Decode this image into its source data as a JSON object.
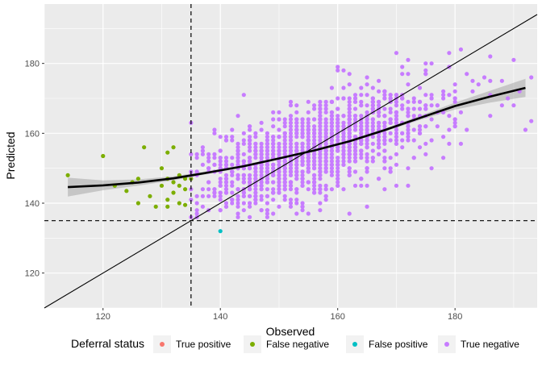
{
  "chart_data": {
    "type": "scatter",
    "title": "",
    "xlabel": "Observed",
    "ylabel": "Predicted",
    "xlim": [
      110,
      194
    ],
    "ylim": [
      110,
      197
    ],
    "x_ticks": [
      120,
      140,
      160,
      180
    ],
    "y_ticks": [
      120,
      140,
      160,
      180
    ],
    "grid": true,
    "threshold_x": 135,
    "threshold_y": 135,
    "identity_line": true,
    "legend": {
      "title": "Deferral status",
      "placement": "bottom",
      "entries": [
        {
          "label": "True positive",
          "color": "#F8766D"
        },
        {
          "label": "False negative",
          "color": "#7CAE00"
        },
        {
          "label": "False positive",
          "color": "#00BFC4"
        },
        {
          "label": "True negative",
          "color": "#C77CFF"
        }
      ]
    },
    "smooth": {
      "x": [
        114,
        120,
        126,
        132,
        138,
        144,
        150,
        156,
        162,
        168,
        174,
        180,
        186,
        192
      ],
      "y": [
        144.6,
        145.1,
        145.9,
        147.1,
        148.8,
        150.6,
        152.8,
        155.1,
        157.7,
        160.9,
        164.4,
        167.8,
        170.5,
        173.0
      ],
      "upper": [
        147.3,
        146.5,
        146.8,
        147.7,
        149.2,
        151.0,
        153.1,
        155.4,
        158.0,
        161.3,
        165.0,
        168.8,
        172.2,
        175.6
      ],
      "lower": [
        141.9,
        143.7,
        145.0,
        146.5,
        148.4,
        150.2,
        152.5,
        154.8,
        157.4,
        160.5,
        163.8,
        166.8,
        168.8,
        170.4
      ]
    },
    "series": [
      {
        "name": "False negative",
        "color": "#7CAE00",
        "points": [
          [
            114,
            148
          ],
          [
            120,
            153.5
          ],
          [
            122,
            145
          ],
          [
            124,
            143.5
          ],
          [
            125,
            146
          ],
          [
            126,
            147
          ],
          [
            126,
            140
          ],
          [
            127,
            156
          ],
          [
            128,
            142
          ],
          [
            129,
            139
          ],
          [
            130,
            150
          ],
          [
            130,
            145
          ],
          [
            131,
            141
          ],
          [
            131,
            154.5
          ],
          [
            131,
            139
          ],
          [
            132,
            156
          ],
          [
            132,
            143
          ],
          [
            132,
            146
          ],
          [
            133,
            140
          ],
          [
            133,
            148
          ],
          [
            134,
            147
          ],
          [
            134,
            144
          ],
          [
            134,
            139.5
          ],
          [
            133,
            145
          ],
          [
            131,
            147
          ],
          [
            135,
            147
          ]
        ]
      },
      {
        "name": "False positive",
        "color": "#00BFC4",
        "points": [
          [
            140,
            132
          ]
        ]
      },
      {
        "name": "True negative",
        "color": "#C77CFF",
        "cloud": {
          "count": 1500,
          "x_mean": 155.5,
          "x_sd": 10.5,
          "x_min": 135,
          "x_max": 191,
          "slope": 0.55,
          "intercept": 69.5,
          "residual_sd": 6.5
        },
        "points": [
          [
            135,
            163
          ],
          [
            170,
            183
          ],
          [
            172,
            181
          ],
          [
            175,
            178
          ],
          [
            179,
            179
          ],
          [
            182,
            177
          ],
          [
            185,
            176
          ],
          [
            188,
            175
          ],
          [
            193,
            176
          ],
          [
            188,
            168
          ],
          [
            186,
            165
          ],
          [
            190,
            168
          ],
          [
            192,
            161
          ],
          [
            193,
            163.5
          ],
          [
            180,
            162
          ],
          [
            178,
            159
          ],
          [
            168,
            170
          ],
          [
            160,
            178
          ],
          [
            165,
            176
          ],
          [
            155,
            137
          ],
          [
            157,
            140
          ],
          [
            162,
            137
          ],
          [
            143,
            136
          ],
          [
            148,
            138
          ],
          [
            176,
            180
          ],
          [
            183,
            172
          ],
          [
            184,
            174
          ],
          [
            189,
            170
          ],
          [
            191,
            172
          ],
          [
            170,
            145
          ],
          [
            167,
            147
          ],
          [
            172,
            150
          ],
          [
            178,
            153
          ],
          [
            174,
            156
          ],
          [
            139,
            161
          ],
          [
            137,
            156
          ],
          [
            141,
            159
          ],
          [
            145,
            162
          ]
        ]
      }
    ]
  }
}
